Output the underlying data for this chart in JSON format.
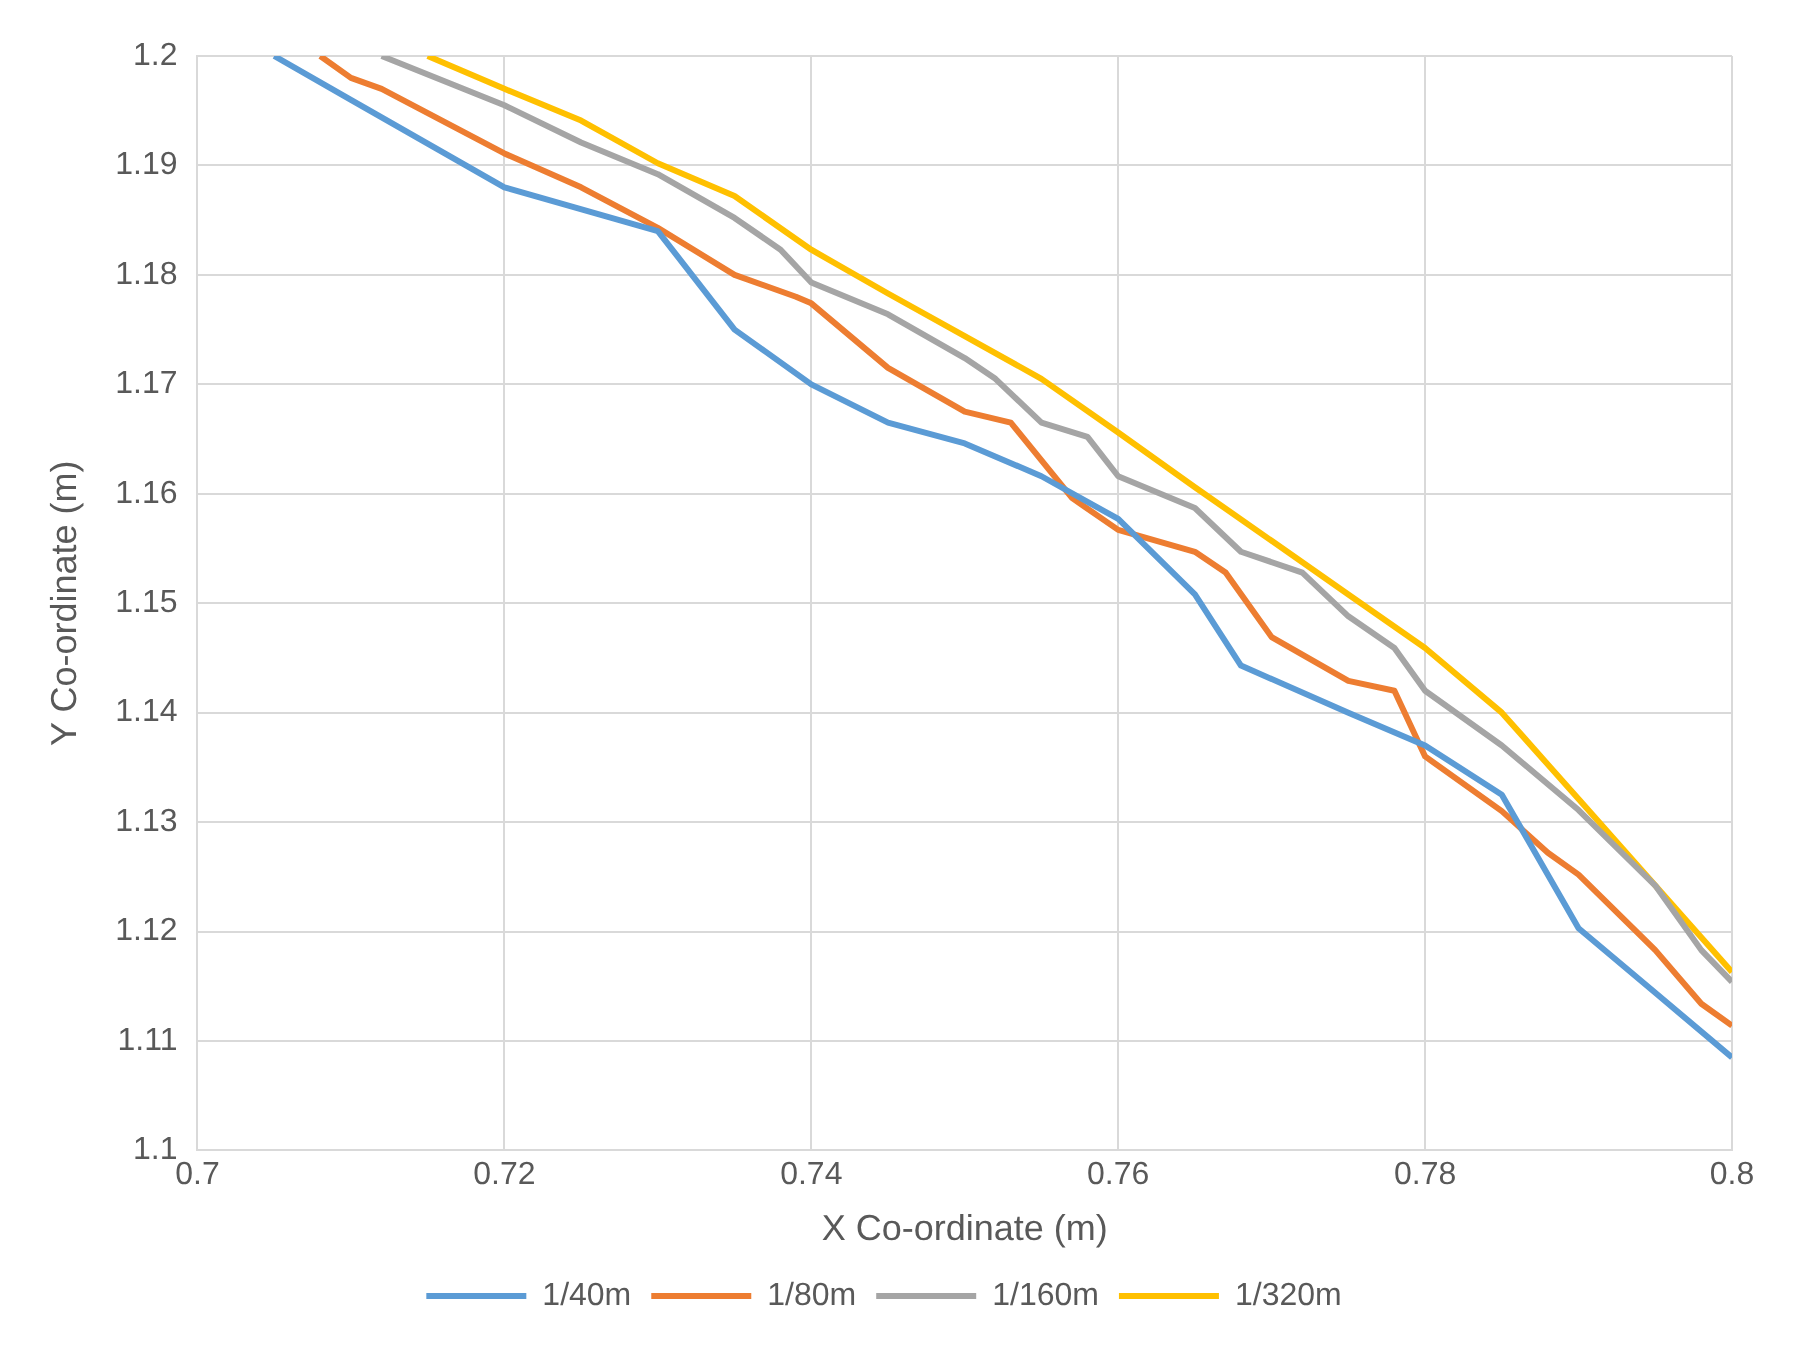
{
  "chart_data": {
    "type": "line",
    "xlabel": "X Co-ordinate (m)",
    "ylabel": "Y Co-ordinate (m)",
    "xlim": [
      0.7,
      0.8
    ],
    "xticks": [
      0.7,
      0.72,
      0.74,
      0.76,
      0.78,
      0.8
    ],
    "ylim": [
      1.1,
      1.2
    ],
    "yticks": [
      1.1,
      1.11,
      1.12,
      1.13,
      1.14,
      1.15,
      1.16,
      1.17,
      1.18,
      1.19,
      1.2
    ],
    "grid": true,
    "legend": "bottom",
    "marker": "none",
    "line_style": "solid",
    "series": [
      {
        "name": "1/40m",
        "color": "#5b9bd5",
        "x": [
          0.705,
          0.71,
          0.72,
          0.73,
          0.735,
          0.74,
          0.745,
          0.75,
          0.755,
          0.76,
          0.765,
          0.768,
          0.775,
          0.78,
          0.785,
          0.79,
          0.795,
          0.8
        ],
        "values": [
          1.2,
          1.196,
          1.188,
          1.184,
          1.175,
          1.17,
          1.1665,
          1.1646,
          1.1616,
          1.1577,
          1.1508,
          1.1443,
          1.14,
          1.137,
          1.1325,
          1.1203,
          1.1144,
          1.1085
        ]
      },
      {
        "name": "1/80m",
        "color": "#ed7d31",
        "x": [
          0.708,
          0.71,
          0.712,
          0.72,
          0.725,
          0.73,
          0.735,
          0.739,
          0.74,
          0.745,
          0.75,
          0.753,
          0.757,
          0.76,
          0.765,
          0.767,
          0.77,
          0.775,
          0.778,
          0.78,
          0.785,
          0.788,
          0.79,
          0.795,
          0.798,
          0.8
        ],
        "values": [
          1.2,
          1.198,
          1.197,
          1.1911,
          1.188,
          1.1843,
          1.18,
          1.178,
          1.1774,
          1.1715,
          1.1675,
          1.1665,
          1.1596,
          1.1567,
          1.1547,
          1.1528,
          1.1469,
          1.1429,
          1.142,
          1.136,
          1.131,
          1.1272,
          1.1252,
          1.1183,
          1.1134,
          1.1114
        ]
      },
      {
        "name": "1/160m",
        "color": "#a5a5a5",
        "x": [
          0.712,
          0.72,
          0.725,
          0.73,
          0.735,
          0.738,
          0.74,
          0.745,
          0.75,
          0.752,
          0.755,
          0.758,
          0.76,
          0.765,
          0.768,
          0.772,
          0.775,
          0.778,
          0.78,
          0.785,
          0.79,
          0.795,
          0.798,
          0.8
        ],
        "values": [
          1.2,
          1.1955,
          1.1921,
          1.1892,
          1.1852,
          1.1823,
          1.1793,
          1.1764,
          1.1724,
          1.1705,
          1.1665,
          1.1652,
          1.1616,
          1.1587,
          1.1547,
          1.1528,
          1.1488,
          1.1459,
          1.142,
          1.137,
          1.1311,
          1.1242,
          1.1183,
          1.1154
        ]
      },
      {
        "name": "1/320m",
        "color": "#ffc000",
        "x": [
          0.715,
          0.72,
          0.725,
          0.73,
          0.735,
          0.74,
          0.745,
          0.75,
          0.755,
          0.76,
          0.765,
          0.77,
          0.775,
          0.78,
          0.785,
          0.79,
          0.795,
          0.8
        ],
        "values": [
          1.2,
          1.197,
          1.1941,
          1.1902,
          1.1872,
          1.1823,
          1.1783,
          1.1744,
          1.1705,
          1.1656,
          1.1606,
          1.1557,
          1.1508,
          1.1459,
          1.14,
          1.1321,
          1.1242,
          1.1163
        ]
      }
    ]
  }
}
